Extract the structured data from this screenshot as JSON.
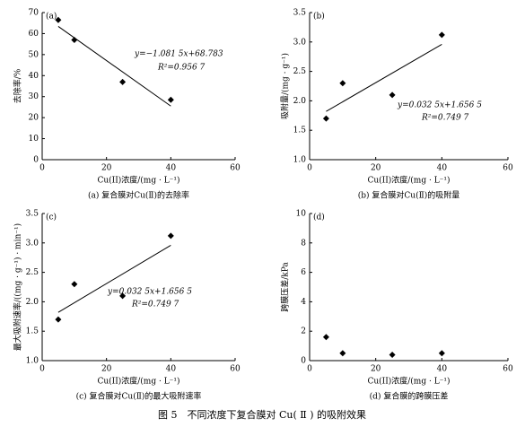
{
  "chart_data": [
    {
      "type": "scatter",
      "panel_label": "(a)",
      "title": "(a) 复合膜对Cu(Ⅱ)的去除率",
      "xlabel": "Cu(II)浓度/(mg · L⁻¹)",
      "ylabel": "去除率/%",
      "x": [
        5,
        10,
        25,
        40
      ],
      "values": [
        66.5,
        57,
        37,
        28.5
      ],
      "color": "#000000",
      "fit": {
        "x": [
          5,
          40
        ],
        "values": [
          63.4,
          25.5
        ]
      },
      "annotations": [
        "y=−1.081 5x+68.783",
        "R²=0.956 7"
      ],
      "xlim": [
        0,
        60
      ],
      "xticks": [
        0,
        20,
        40,
        60
      ],
      "ylim": [
        0,
        70
      ],
      "yticks": [
        0,
        10,
        20,
        30,
        40,
        50,
        60,
        70
      ]
    },
    {
      "type": "scatter",
      "panel_label": "(b)",
      "title": "(b) 复合膜对Cu(Ⅱ)的吸附量",
      "xlabel": "Cu(II)浓度/(mg · L⁻¹)",
      "ylabel": "吸附量/(mg · g⁻¹)",
      "x": [
        5,
        10,
        25,
        40
      ],
      "values": [
        1.7,
        2.3,
        2.1,
        3.12
      ],
      "color": "#000000",
      "fit": {
        "x": [
          5,
          40
        ],
        "values": [
          1.82,
          2.96
        ]
      },
      "annotations": [
        "y=0.032 5x+1.656 5",
        "R²=0.749 7"
      ],
      "xlim": [
        0,
        60
      ],
      "xticks": [
        0,
        20,
        40,
        60
      ],
      "ylim": [
        1,
        3.5
      ],
      "yticks": [
        {
          "value": 1,
          "label": "1.0"
        },
        1.5,
        {
          "value": 2,
          "label": "2.0"
        },
        2.5,
        {
          "value": 3,
          "label": "3.0"
        },
        3.5
      ]
    },
    {
      "type": "scatter",
      "panel_label": "(c)",
      "title": "(c) 复合膜对Cu(Ⅱ)的最大吸附速率",
      "xlabel": "Cu(II)浓度/(mg · L⁻¹)",
      "ylabel": "最大吸附速率/((mg · g⁻¹) · min⁻¹)",
      "x": [
        5,
        10,
        25,
        40
      ],
      "values": [
        1.7,
        2.3,
        2.1,
        3.12
      ],
      "color": "#000000",
      "fit": {
        "x": [
          5,
          40
        ],
        "values": [
          1.82,
          2.96
        ]
      },
      "annotations": [
        "y=0.032 5x+1.656 5",
        "R²=0.749 7"
      ],
      "xlim": [
        0,
        60
      ],
      "xticks": [
        0,
        20,
        40,
        60
      ],
      "ylim": [
        1,
        3.5
      ],
      "yticks": [
        {
          "value": 1,
          "label": "1.0"
        },
        1.5,
        {
          "value": 2,
          "label": "2.0"
        },
        2.5,
        {
          "value": 3,
          "label": "3.0"
        },
        3.5
      ]
    },
    {
      "type": "scatter",
      "panel_label": "(d)",
      "title": "(d) 复合膜的跨膜压差",
      "xlabel": "Cu(II)浓度/(mg · L⁻¹)",
      "ylabel": "跨膜压差/kPa",
      "x": [
        5,
        10,
        25,
        40
      ],
      "values": [
        1.6,
        0.5,
        0.4,
        0.5
      ],
      "color": "#000000",
      "xlim": [
        0,
        60
      ],
      "xticks": [
        0,
        20,
        40,
        60
      ],
      "ylim": [
        0,
        10
      ],
      "yticks": [
        0,
        2,
        4,
        6,
        8,
        10
      ]
    }
  ],
  "caption": "图 5　不同浓度下复合膜对 Cu( Ⅱ ) 的吸附效果"
}
